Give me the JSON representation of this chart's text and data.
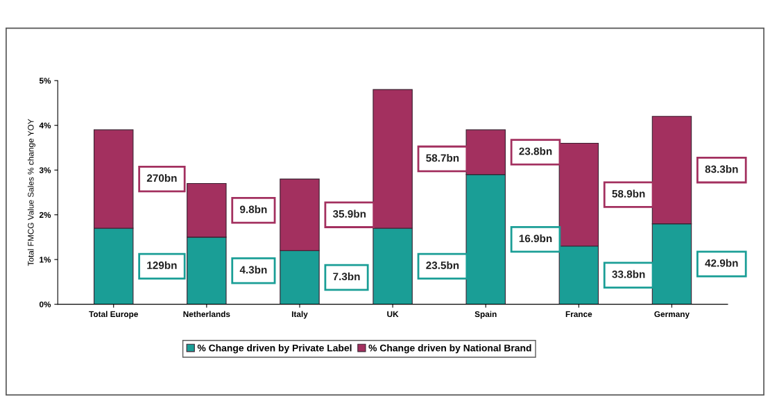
{
  "chart_data": {
    "type": "bar",
    "stacked": true,
    "ylabel": "Total FMCG Value Sales % change YOY",
    "categories": [
      "Total Europe",
      "Netherlands",
      "Italy",
      "UK",
      "Spain",
      "France",
      "Germany"
    ],
    "series": [
      {
        "name": "% Change driven by Private Label",
        "color": "#1a9e96",
        "values": [
          1.7,
          1.5,
          1.2,
          1.7,
          2.9,
          1.3,
          1.8
        ]
      },
      {
        "name": "% Change driven by National Brand",
        "color": "#a3305f",
        "values": [
          2.2,
          1.2,
          1.6,
          3.1,
          1.0,
          2.3,
          2.4
        ]
      }
    ],
    "annotations": [
      "129bn",
      "270bn",
      "4.3bn",
      "9.8bn",
      "7.3bn",
      "35.9bn",
      "23.5bn",
      "58.7bn",
      "16.9bn",
      "23.8bn",
      "33.8bn",
      "58.9bn",
      "42.9bn",
      "83.3bn"
    ],
    "ylim": [
      0,
      5
    ],
    "yticks": [
      {
        "value": 0,
        "label": "0%"
      },
      {
        "value": 1,
        "label": "1%"
      },
      {
        "value": 2,
        "label": "2%"
      },
      {
        "value": 3,
        "label": "3%"
      },
      {
        "value": 4,
        "label": "4%"
      },
      {
        "value": 5,
        "label": "5%"
      }
    ],
    "grid": false,
    "legend": "bottom"
  }
}
